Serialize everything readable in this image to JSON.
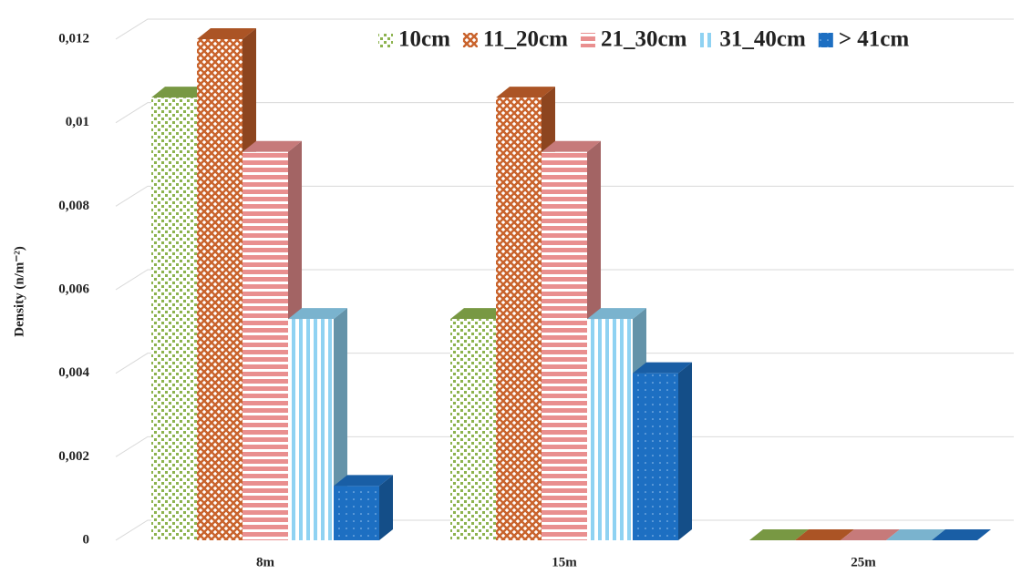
{
  "chart_data": {
    "type": "bar3d",
    "y_label": "Density (n/m⁻²)",
    "categories": [
      "8m",
      "15m",
      "25m"
    ],
    "series": [
      {
        "name": "10cm",
        "color": "#8db34f",
        "values": [
          0.0106,
          0.0053,
          0
        ]
      },
      {
        "name": "11_20cm",
        "color": "#c9632c",
        "values": [
          0.012,
          0.0106,
          0
        ]
      },
      {
        "name": "21_30cm",
        "color": "#e98f8f",
        "values": [
          0.0093,
          0.0093,
          0
        ]
      },
      {
        "name": "31_40cm",
        "color": "#8fd2f2",
        "values": [
          0.0053,
          0.0053,
          0
        ]
      },
      {
        "name": "> 41cm",
        "color": "#1d6fc2",
        "values": [
          0.0013,
          0.004,
          0
        ]
      }
    ],
    "ylim": [
      0,
      0.012
    ],
    "yticks": [
      0,
      {
        "value": 0.002,
        "label": "0,002"
      },
      {
        "value": 0.004,
        "label": "0,004"
      },
      {
        "value": 0.006,
        "label": "0,006"
      },
      {
        "value": 0.008,
        "label": "0,008"
      },
      {
        "value": 0.01,
        "label": "0,01"
      },
      {
        "value": 0.012,
        "label": "0,012"
      }
    ],
    "grid": true,
    "legend": "top-right"
  }
}
